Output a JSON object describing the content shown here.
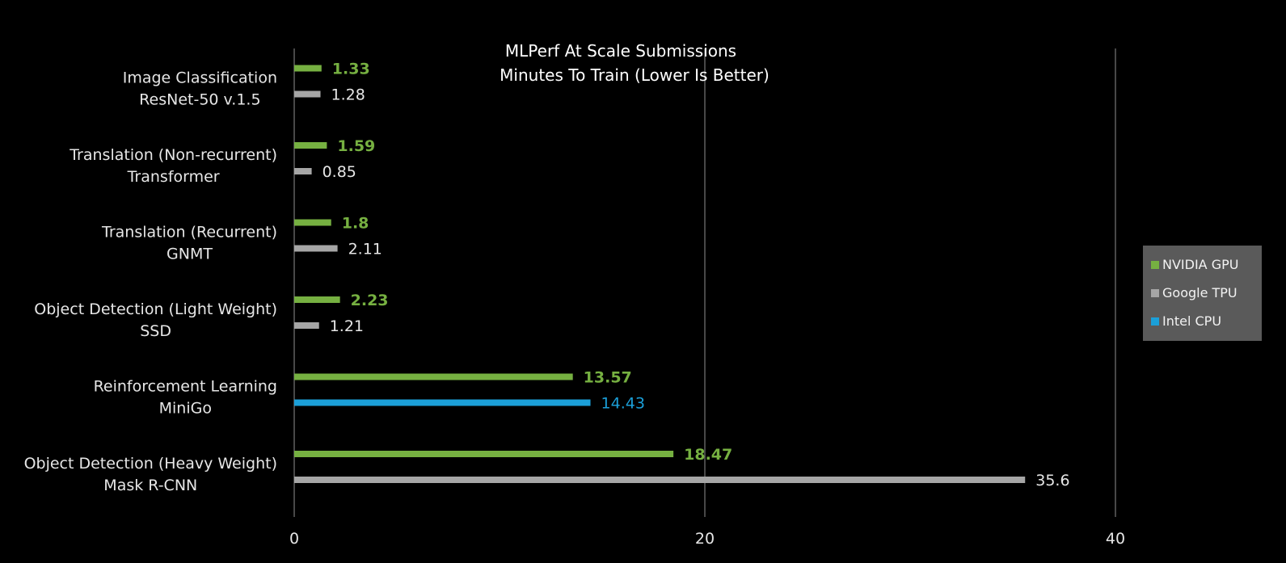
{
  "chart_data": {
    "type": "bar",
    "orientation": "horizontal",
    "title": "MLPerf At Scale Submissions",
    "subtitle": "Minutes To Train (Lower Is Better)",
    "xlim": [
      0,
      40
    ],
    "xticks": [
      0,
      20,
      40
    ],
    "grid": true,
    "legend_position": "right",
    "categories": [
      {
        "line1": "Image Classification",
        "line2": "ResNet-50 v.1.5",
        "bars": [
          {
            "series": "NVIDIA GPU",
            "value": 1.33
          },
          {
            "series": "Google TPU",
            "value": 1.28
          }
        ]
      },
      {
        "line1": "Translation (Non-recurrent)",
        "line2": "Transformer",
        "bars": [
          {
            "series": "NVIDIA GPU",
            "value": 1.59
          },
          {
            "series": "Google TPU",
            "value": 0.85
          }
        ]
      },
      {
        "line1": "Translation (Recurrent)",
        "line2": "GNMT",
        "bars": [
          {
            "series": "NVIDIA GPU",
            "value": 1.8
          },
          {
            "series": "Google TPU",
            "value": 2.11
          }
        ]
      },
      {
        "line1": "Object Detection (Light Weight)",
        "line2": "SSD",
        "bars": [
          {
            "series": "NVIDIA GPU",
            "value": 2.23
          },
          {
            "series": "Google TPU",
            "value": 1.21
          }
        ]
      },
      {
        "line1": "Reinforcement Learning",
        "line2": "MiniGo",
        "bars": [
          {
            "series": "NVIDIA GPU",
            "value": 13.57
          },
          {
            "series": "Intel CPU",
            "value": 14.43
          }
        ]
      },
      {
        "line1": "Object Detection (Heavy Weight)",
        "line2": "Mask R-CNN",
        "bars": [
          {
            "series": "NVIDIA GPU",
            "value": 18.47
          },
          {
            "series": "Google TPU",
            "value": 35.6
          }
        ]
      }
    ],
    "series": [
      {
        "name": "NVIDIA GPU",
        "color": "#76b041",
        "label_bold": true
      },
      {
        "name": "Google TPU",
        "color": "#a6a6a6",
        "label_bold": false
      },
      {
        "name": "Intel CPU",
        "color": "#1b9fd8",
        "label_bold": false
      }
    ]
  },
  "legend": {
    "items": [
      {
        "label": "NVIDIA GPU",
        "color": "#76b041"
      },
      {
        "label": "Google TPU",
        "color": "#a6a6a6"
      },
      {
        "label": "Intel CPU",
        "color": "#1b9fd8"
      }
    ]
  }
}
